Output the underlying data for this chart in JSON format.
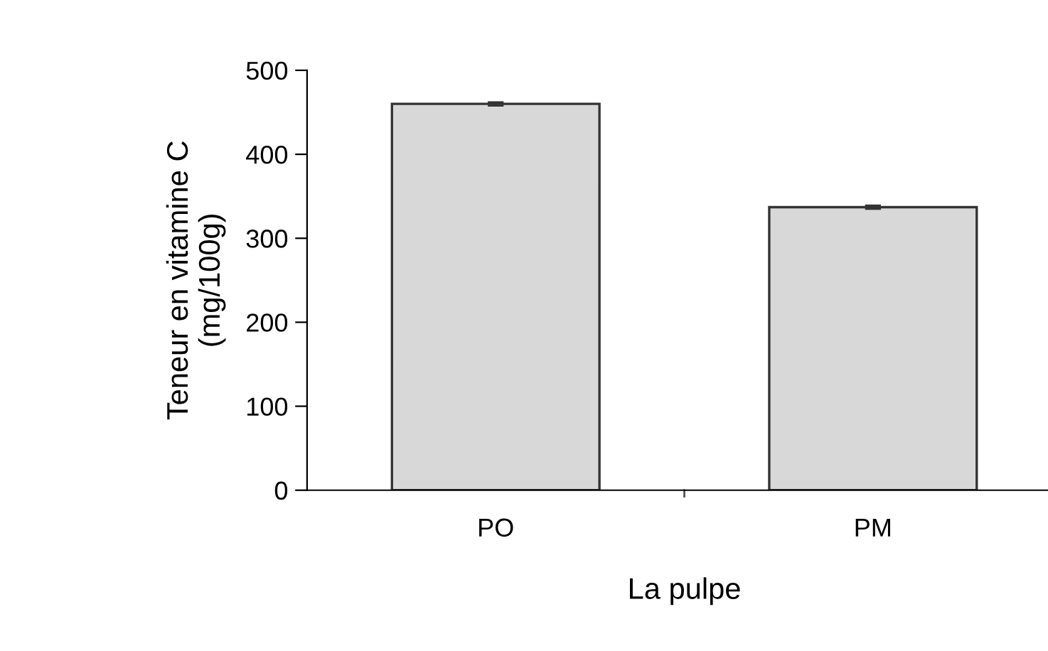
{
  "chart_data": {
    "type": "bar",
    "xlabel": "La pulpe",
    "ylabel": "Teneur en vitamine C\n(mg/100g)",
    "categories": [
      "PO",
      "PM"
    ],
    "values": [
      460,
      337
    ],
    "errors": [
      2,
      2
    ],
    "color": "#d8d8d8",
    "ylim": [
      0,
      500
    ],
    "yticks": [
      0,
      100,
      200,
      300,
      400,
      500
    ],
    "grid": false
  }
}
